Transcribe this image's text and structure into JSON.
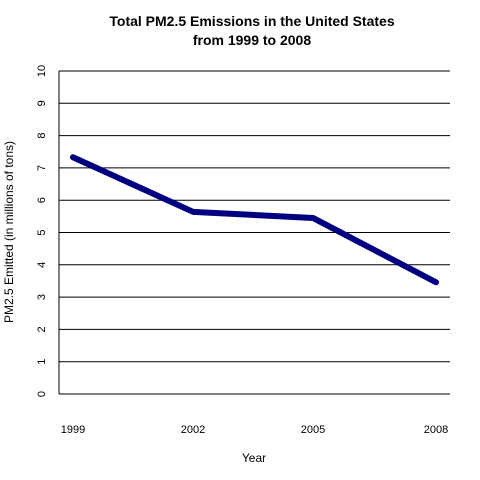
{
  "chart_data": {
    "type": "line",
    "title_lines": [
      "Total PM2.5 Emissions in the United States",
      "from 1999 to 2008"
    ],
    "xlabel": "Year",
    "ylabel": "PM2.5 Emitted (in millions of tons)",
    "categories": [
      "1999",
      "2002",
      "2005",
      "2008"
    ],
    "series": [
      {
        "values": [
          7.33,
          5.64,
          5.45,
          3.46
        ],
        "color": "#000080"
      }
    ],
    "ylim": [
      0,
      10
    ],
    "yticks": [
      0,
      1,
      2,
      3,
      4,
      5,
      6,
      7,
      8,
      9,
      10
    ],
    "grid": true
  }
}
